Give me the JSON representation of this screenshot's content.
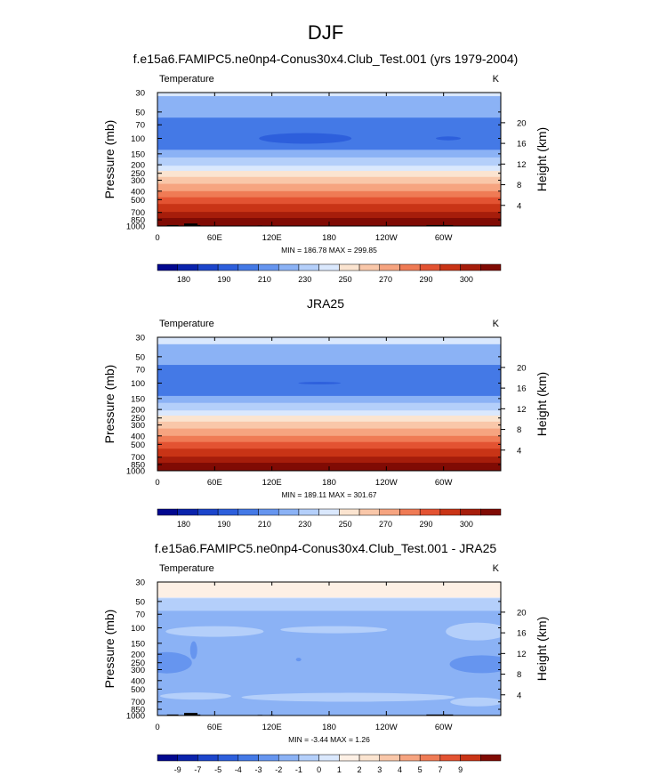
{
  "page_title": "DJF",
  "chart_data": [
    {
      "type": "heatmap",
      "title": "f.e15a6.FAMIPC5.ne0np4-Conus30x4.Club_Test.001 (yrs 1979-2004)",
      "left_label": "Temperature",
      "units": "K",
      "ylabel": "Pressure (mb)",
      "ylabel_right": "Height (km)",
      "pressure_ticks": [
        "30",
        "50",
        "70",
        "100",
        "150",
        "200",
        "250",
        "300",
        "400",
        "500",
        "700",
        "850",
        "1000"
      ],
      "height_ticks": [
        "20",
        "16",
        "12",
        "8",
        "4"
      ],
      "lon_ticks": [
        "0",
        "60E",
        "120E",
        "180",
        "120W",
        "60W"
      ],
      "stats": "MIN = 186.78  MAX = 299.85",
      "colorbar_labels": [
        "180",
        "190",
        "210",
        "230",
        "250",
        "270",
        "290",
        "300"
      ],
      "bands": [
        {
          "p_top": 30,
          "p_bot": 33,
          "value": "215-230"
        },
        {
          "p_top": 33,
          "p_bot": 58,
          "value": "205-215"
        },
        {
          "p_top": 58,
          "p_bot": 135,
          "value": "200-205"
        },
        {
          "p_top": 135,
          "p_bot": 165,
          "value": "205-215"
        },
        {
          "p_top": 165,
          "p_bot": 205,
          "value": "215-220"
        },
        {
          "p_top": 205,
          "p_bot": 235,
          "value": "220-230"
        },
        {
          "p_top": 235,
          "p_bot": 275,
          "value": "230-240"
        },
        {
          "p_top": 275,
          "p_bot": 330,
          "value": "240-250"
        },
        {
          "p_top": 330,
          "p_bot": 400,
          "value": "250-260"
        },
        {
          "p_top": 400,
          "p_bot": 470,
          "value": "260-265"
        },
        {
          "p_top": 470,
          "p_bot": 560,
          "value": "265-270"
        },
        {
          "p_top": 560,
          "p_bot": 690,
          "value": "270-275"
        },
        {
          "p_top": 690,
          "p_bot": 810,
          "value": "275-280"
        },
        {
          "p_top": 810,
          "p_bot": 930,
          "value": "280-285"
        },
        {
          "p_top": 930,
          "p_bot": 1000,
          "value": "285-290"
        }
      ],
      "features": [
        "cold core near 100 mb, 120E-150W (<200 K)",
        "small cold patch near 100 mb, 60W",
        "topography masked near 1000 mb"
      ]
    },
    {
      "type": "heatmap",
      "title": "JRA25",
      "left_label": "Temperature",
      "units": "K",
      "ylabel": "Pressure (mb)",
      "ylabel_right": "Height (km)",
      "pressure_ticks": [
        "30",
        "50",
        "70",
        "100",
        "150",
        "200",
        "250",
        "300",
        "400",
        "500",
        "700",
        "850",
        "1000"
      ],
      "height_ticks": [
        "20",
        "16",
        "12",
        "8",
        "4"
      ],
      "lon_ticks": [
        "0",
        "60E",
        "120E",
        "180",
        "120W",
        "60W"
      ],
      "stats": "MIN = 189.11  MAX = 301.67",
      "colorbar_labels": [
        "180",
        "190",
        "210",
        "230",
        "250",
        "270",
        "290",
        "300"
      ],
      "bands": [
        {
          "p_top": 30,
          "p_bot": 36,
          "value": "215-230"
        },
        {
          "p_top": 36,
          "p_bot": 62,
          "value": "205-215"
        },
        {
          "p_top": 62,
          "p_bot": 140,
          "value": "200-205"
        },
        {
          "p_top": 140,
          "p_bot": 168,
          "value": "205-215"
        },
        {
          "p_top": 168,
          "p_bot": 205,
          "value": "215-220"
        },
        {
          "p_top": 205,
          "p_bot": 235,
          "value": "220-230"
        },
        {
          "p_top": 235,
          "p_bot": 275,
          "value": "230-240"
        },
        {
          "p_top": 275,
          "p_bot": 330,
          "value": "240-250"
        },
        {
          "p_top": 330,
          "p_bot": 400,
          "value": "250-260"
        },
        {
          "p_top": 400,
          "p_bot": 470,
          "value": "260-265"
        },
        {
          "p_top": 470,
          "p_bot": 560,
          "value": "265-270"
        },
        {
          "p_top": 560,
          "p_bot": 690,
          "value": "270-275"
        },
        {
          "p_top": 690,
          "p_bot": 810,
          "value": "275-280"
        },
        {
          "p_top": 810,
          "p_bot": 930,
          "value": "280-285"
        },
        {
          "p_top": 930,
          "p_bot": 1000,
          "value": "285-290"
        }
      ]
    },
    {
      "type": "heatmap",
      "title": "f.e15a6.FAMIPC5.ne0np4-Conus30x4.Club_Test.001 - JRA25",
      "left_label": "Temperature",
      "units": "K",
      "ylabel": "Pressure (mb)",
      "ylabel_right": "Height (km)",
      "pressure_ticks": [
        "30",
        "50",
        "70",
        "100",
        "150",
        "200",
        "250",
        "300",
        "400",
        "500",
        "700",
        "850",
        "1000"
      ],
      "height_ticks": [
        "20",
        "16",
        "12",
        "8",
        "4"
      ],
      "lon_ticks": [
        "0",
        "60E",
        "120E",
        "180",
        "120W",
        "60W"
      ],
      "stats": "MIN = -3.44  MAX =  1.26",
      "colorbar_labels": [
        "-9",
        "-7",
        "-5",
        "-4",
        "-3",
        "-2",
        "-1",
        "0",
        "1",
        "2",
        "3",
        "4",
        "5",
        "7",
        "9"
      ],
      "bands": [
        {
          "p_top": 30,
          "p_bot": 46,
          "value": "0-1"
        },
        {
          "p_top": 46,
          "p_bot": 64,
          "value": "-1-0"
        },
        {
          "p_top": 64,
          "p_bot": 1000,
          "value": "-2--1"
        }
      ],
      "features": [
        "lighter (-1 to 0) regions near 100 mb and 500-850 mb",
        "darker (-3 to -2) patches near 250-300 mb at 20E and 30W"
      ]
    }
  ],
  "colors": {
    "abs_palette": [
      "#02088f",
      "#0a23ac",
      "#1c45cb",
      "#2d5fdc",
      "#4479e6",
      "#6695ef",
      "#8bb2f5",
      "#b4cffa",
      "#dae8fd",
      "#fbe4d0",
      "#f9c7a9",
      "#f6a480",
      "#ef7b55",
      "#e35332",
      "#c93416",
      "#a61d0b",
      "#800b04"
    ],
    "abs_boundaries": [
      175,
      180,
      185,
      190,
      200,
      205,
      210,
      215,
      220,
      230,
      240,
      250,
      260,
      265,
      270,
      275,
      280,
      285,
      290,
      300,
      305
    ],
    "diff_palette": [
      "#02088f",
      "#0a23ac",
      "#1c45cb",
      "#2d5fdc",
      "#4479e6",
      "#6695ef",
      "#8bb2f5",
      "#b4cffa",
      "#dae8fd",
      "#fdf0e5",
      "#fbe4d0",
      "#f9c7a9",
      "#f6a480",
      "#ef7b55",
      "#e35332",
      "#c93416",
      "#800b04"
    ],
    "mask": "#000000"
  }
}
